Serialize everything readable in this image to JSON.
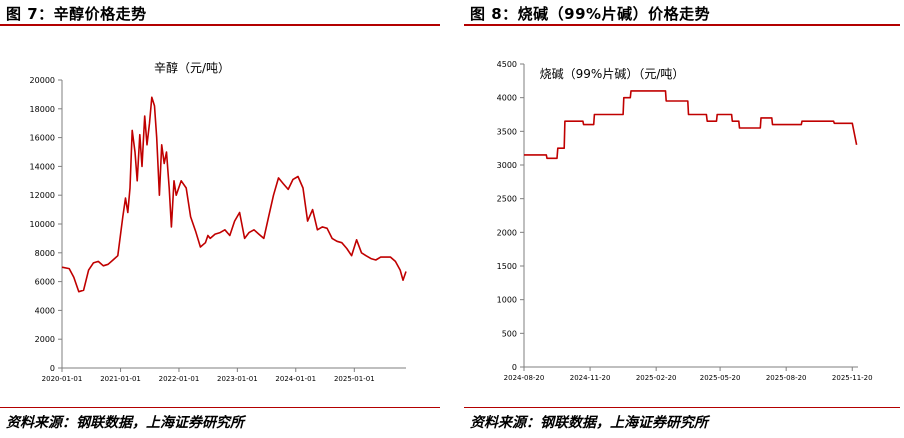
{
  "figures": [
    {
      "title": "图 7：辛醇价格走势",
      "source": "资料来源：钢联数据，上海证券研究所",
      "chart_data": {
        "type": "line",
        "title": "辛醇（元/吨）",
        "xlabel": "",
        "ylabel": "",
        "series_color": "#c00000",
        "grid": false,
        "legend": "none",
        "x_ticks": [
          "2020-01-01",
          "2021-01-01",
          "2022-01-01",
          "2023-01-01",
          "2024-01-01",
          "2025-01-01"
        ],
        "x_range": [
          "2020-01-01",
          "2025-11-20"
        ],
        "ylim": [
          0,
          20000
        ],
        "y_ticks": [
          0,
          2000,
          4000,
          6000,
          8000,
          10000,
          12000,
          14000,
          16000,
          18000,
          20000
        ],
        "x": [
          "2020-01-01",
          "2020-02-15",
          "2020-03-15",
          "2020-04-15",
          "2020-05-15",
          "2020-06-15",
          "2020-07-15",
          "2020-08-15",
          "2020-09-15",
          "2020-10-15",
          "2020-11-15",
          "2020-12-15",
          "2021-01-15",
          "2021-02-01",
          "2021-02-15",
          "2021-03-01",
          "2021-03-15",
          "2021-04-01",
          "2021-04-15",
          "2021-05-01",
          "2021-05-15",
          "2021-06-01",
          "2021-06-15",
          "2021-07-01",
          "2021-07-15",
          "2021-08-01",
          "2021-08-15",
          "2021-09-01",
          "2021-09-15",
          "2021-10-01",
          "2021-10-15",
          "2021-11-01",
          "2021-11-15",
          "2021-12-01",
          "2021-12-15",
          "2022-01-15",
          "2022-02-15",
          "2022-03-15",
          "2022-04-15",
          "2022-05-15",
          "2022-06-15",
          "2022-07-01",
          "2022-07-15",
          "2022-08-15",
          "2022-09-15",
          "2022-10-15",
          "2022-11-15",
          "2022-12-15",
          "2023-01-15",
          "2023-02-15",
          "2023-03-15",
          "2023-04-15",
          "2023-05-15",
          "2023-06-15",
          "2023-07-15",
          "2023-08-15",
          "2023-09-15",
          "2023-10-15",
          "2023-11-15",
          "2023-12-15",
          "2024-01-15",
          "2024-02-15",
          "2024-03-15",
          "2024-04-15",
          "2024-05-15",
          "2024-06-15",
          "2024-07-15",
          "2024-08-15",
          "2024-09-15",
          "2024-10-15",
          "2024-11-15",
          "2024-12-15",
          "2025-01-15",
          "2025-02-15",
          "2025-03-15",
          "2025-04-15",
          "2025-05-15",
          "2025-06-15",
          "2025-07-15",
          "2025-08-15",
          "2025-09-15",
          "2025-10-15",
          "2025-11-01",
          "2025-11-20"
        ],
        "values": [
          7000,
          6900,
          6300,
          5300,
          5400,
          6800,
          7300,
          7400,
          7100,
          7200,
          7500,
          7800,
          10500,
          11800,
          10800,
          12500,
          16500,
          15000,
          13000,
          16200,
          14000,
          17500,
          15500,
          17000,
          18800,
          18200,
          16000,
          12000,
          15500,
          14200,
          15000,
          12500,
          9800,
          13000,
          12000,
          13000,
          12500,
          10500,
          9500,
          8400,
          8700,
          9200,
          9000,
          9300,
          9400,
          9600,
          9200,
          10200,
          10800,
          9000,
          9400,
          9600,
          9300,
          9000,
          10500,
          12000,
          13200,
          12800,
          12400,
          13100,
          13300,
          12500,
          10200,
          11000,
          9600,
          9800,
          9700,
          9000,
          8800,
          8700,
          8300,
          7800,
          8900,
          8000,
          7800,
          7600,
          7500,
          7700,
          7700,
          7700,
          7400,
          6800,
          6100,
          6700
        ]
      }
    },
    {
      "title": "图 8：烧碱（99%片碱）价格走势",
      "source": "资料来源：钢联数据，上海证券研究所",
      "chart_data": {
        "type": "line",
        "title": "烧碱（99%片碱）（元/吨）",
        "xlabel": "",
        "ylabel": "",
        "series_color": "#c00000",
        "grid": false,
        "legend": "none",
        "x_ticks": [
          "2024-08-20",
          "2024-11-20",
          "2025-02-20",
          "2025-05-20",
          "2025-08-20",
          "2025-11-20"
        ],
        "x_range": [
          "2024-08-20",
          "2025-11-28"
        ],
        "ylim": [
          0,
          4500
        ],
        "y_ticks": [
          0,
          500,
          1000,
          1500,
          2000,
          2500,
          3000,
          3500,
          4000,
          4500
        ],
        "x": [
          "2024-08-20",
          "2024-09-20",
          "2024-09-21",
          "2024-10-05",
          "2024-10-06",
          "2024-10-15",
          "2024-10-16",
          "2024-11-10",
          "2024-11-11",
          "2024-11-25",
          "2024-11-26",
          "2025-01-05",
          "2025-01-06",
          "2025-01-15",
          "2025-01-16",
          "2025-03-05",
          "2025-03-06",
          "2025-04-05",
          "2025-04-06",
          "2025-05-01",
          "2025-05-02",
          "2025-05-15",
          "2025-05-16",
          "2025-06-05",
          "2025-06-06",
          "2025-06-15",
          "2025-06-16",
          "2025-07-15",
          "2025-07-16",
          "2025-07-31",
          "2025-08-01",
          "2025-09-10",
          "2025-09-11",
          "2025-10-25",
          "2025-10-26",
          "2025-11-20",
          "2025-11-26"
        ],
        "values": [
          3150,
          3150,
          3100,
          3100,
          3250,
          3250,
          3650,
          3650,
          3600,
          3600,
          3750,
          3750,
          4000,
          4000,
          4100,
          4100,
          3950,
          3950,
          3750,
          3750,
          3650,
          3650,
          3750,
          3750,
          3650,
          3650,
          3550,
          3550,
          3700,
          3700,
          3600,
          3600,
          3650,
          3650,
          3620,
          3620,
          3300
        ]
      }
    }
  ]
}
